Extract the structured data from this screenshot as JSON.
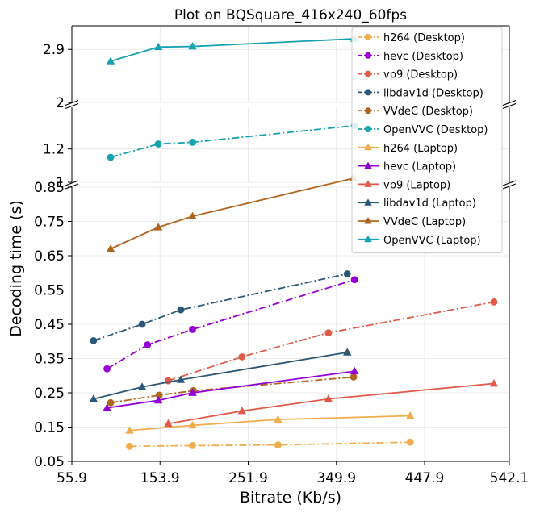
{
  "chart_data": {
    "type": "line",
    "title": "Plot on BQSquare_416x240_60fps",
    "xlabel": "Bitrate (Kb/s)",
    "ylabel": "Decoding time (s)",
    "xlim": [
      55.9,
      542.1
    ],
    "x_ticks": [
      "55.9",
      "153.9",
      "251.9",
      "349.9",
      "447.9",
      "542.1"
    ],
    "y_axis_breaks": true,
    "y_segments": [
      {
        "ylim": [
          2.0,
          3.3
        ],
        "ticks": [
          2.9,
          2.0
        ],
        "tick_labels": [
          "2.9",
          "2"
        ]
      },
      {
        "ylim": [
          1.0,
          1.45
        ],
        "ticks": [
          1.2,
          1.0
        ],
        "tick_labels": [
          "1.2",
          "1"
        ]
      },
      {
        "ylim": [
          0.05,
          0.85
        ],
        "ticks": [
          0.85,
          0.75,
          0.65,
          0.55,
          0.45,
          0.35,
          0.25,
          0.15,
          0.05
        ],
        "tick_labels": [
          "0.85",
          "0.75",
          "0.65",
          "0.55",
          "0.45",
          "0.35",
          "0.25",
          "0.15",
          "0.05"
        ]
      }
    ],
    "grid": true,
    "legend_position": "top-right",
    "series": [
      {
        "name": "h264 (Desktop)",
        "color": "#f0ad4e",
        "marker": "circle",
        "dash": "dashdot",
        "segment": 2,
        "x": [
          120,
          190,
          285,
          432
        ],
        "y": [
          0.094,
          0.096,
          0.098,
          0.106
        ]
      },
      {
        "name": "hevc (Desktop)",
        "color": "#9400d3",
        "marker": "circle",
        "dash": "dashdot",
        "segment": 2,
        "x": [
          95,
          140,
          190,
          370
        ],
        "y": [
          0.32,
          0.39,
          0.435,
          0.58
        ]
      },
      {
        "name": "vp9 (Desktop)",
        "color": "#e05a47",
        "marker": "circle",
        "dash": "dashdot",
        "segment": 2,
        "x": [
          163,
          245,
          341,
          525
        ],
        "y": [
          0.285,
          0.355,
          0.425,
          0.515
        ]
      },
      {
        "name": "libdav1d (Desktop)",
        "color": "#2c5878",
        "marker": "circle",
        "dash": "dashdot",
        "segment": 2,
        "x": [
          80,
          134,
          177,
          362
        ],
        "y": [
          0.402,
          0.45,
          0.492,
          0.597
        ]
      },
      {
        "name": "VVdeC (Desktop)",
        "color": "#b0651e",
        "marker": "circle",
        "dash": "dashdot",
        "segment": 2,
        "x": [
          99,
          153,
          191,
          369
        ],
        "y": [
          0.221,
          0.243,
          0.256,
          0.296
        ]
      },
      {
        "name": "OpenVVC (Desktop)",
        "color": "#17a2b0",
        "marker": "circle",
        "dash": "dashdot",
        "segment": 1,
        "x": [
          99,
          152,
          190,
          370
        ],
        "y": [
          1.15,
          1.23,
          1.24,
          1.34
        ]
      },
      {
        "name": "h264 (Laptop)",
        "color": "#f0ad4e",
        "marker": "triangle",
        "dash": "solid",
        "segment": 2,
        "x": [
          120,
          190,
          285,
          432
        ],
        "y": [
          0.14,
          0.155,
          0.172,
          0.183
        ]
      },
      {
        "name": "hevc (Laptop)",
        "color": "#9400d3",
        "marker": "triangle",
        "dash": "solid",
        "segment": 2,
        "x": [
          95,
          152,
          190,
          370
        ],
        "y": [
          0.206,
          0.228,
          0.25,
          0.313
        ]
      },
      {
        "name": "vp9 (Laptop)",
        "color": "#e05a47",
        "marker": "triangle",
        "dash": "solid",
        "segment": 2,
        "x": [
          163,
          245,
          341,
          525
        ],
        "y": [
          0.16,
          0.197,
          0.232,
          0.277
        ]
      },
      {
        "name": "libdav1d (Laptop)",
        "color": "#2c5878",
        "marker": "triangle",
        "dash": "solid",
        "segment": 2,
        "x": [
          80,
          134,
          177,
          362
        ],
        "y": [
          0.232,
          0.267,
          0.288,
          0.368
        ]
      },
      {
        "name": "VVdeC (Laptop)",
        "color": "#b0651e",
        "marker": "triangle",
        "dash": "solid",
        "segment": 2,
        "x": [
          99,
          152,
          190,
          369
        ],
        "y": [
          0.67,
          0.733,
          0.765,
          0.876
        ]
      },
      {
        "name": "OpenVVC (Laptop)",
        "color": "#17a2b0",
        "marker": "triangle",
        "dash": "solid",
        "segment": 0,
        "x": [
          99,
          152,
          190,
          370
        ],
        "y": [
          2.7,
          2.94,
          2.95,
          3.08
        ]
      }
    ]
  }
}
